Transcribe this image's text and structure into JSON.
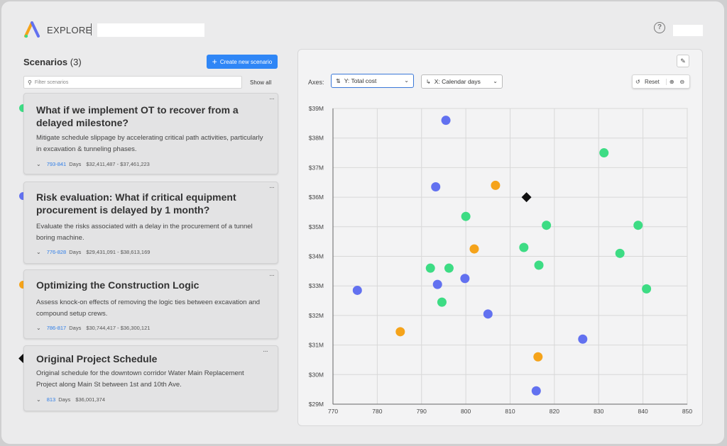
{
  "header": {
    "app_name": "EXPLORE",
    "help_icon": "help-circle-icon"
  },
  "scenarios": {
    "title": "Scenarios",
    "count": "(3)",
    "create_label": "Create new scenario",
    "filter_placeholder": "Filter scenarios",
    "show_all": "Show all",
    "items": [
      {
        "title": "What if we implement OT to recover from a delayed milestone?",
        "description": "Mitigate schedule slippage by accelerating critical path activities, particularly in excavation & tunneling phases.",
        "days_range": "793-841",
        "days_unit": "Days",
        "cost_range": "$32,411,487 - $37,461,223",
        "color": "#3ddc84"
      },
      {
        "title": "Risk evaluation: What if critical equipment procurement is delayed by 1 month?",
        "description": "Evaluate the risks associated with a delay in the procurement of a tunnel boring machine.",
        "days_range": "776-828",
        "days_unit": "Days",
        "cost_range": "$29,431,091 - $38,613,169",
        "color": "#6271f0"
      },
      {
        "title": "Optimizing the Construction Logic",
        "description": "Assess knock-on effects of removing the logic ties between excavation and compound setup crews.",
        "days_range": "786-817",
        "days_unit": "Days",
        "cost_range": "$30,744,417 - $36,300,121",
        "color": "#f5a31a"
      },
      {
        "title": "Original Project Schedule",
        "description": "Original schedule for the downtown corridor Water Main Replacement Project along Main St between 1st and 10th Ave.",
        "days_range": "813",
        "days_unit": "Days",
        "cost_range": "$36,001,374",
        "color": "#111111"
      }
    ]
  },
  "chart_controls": {
    "axes_label": "Axes:",
    "y_axis": "Y: Total cost",
    "x_axis": "X: Calendar days",
    "reset": "Reset"
  },
  "chart_data": {
    "type": "scatter",
    "xlabel": "",
    "ylabel": "",
    "xlim": [
      770,
      850
    ],
    "ylim": [
      29,
      39
    ],
    "x_ticks": [
      "770",
      "780",
      "790",
      "800",
      "810",
      "820",
      "830",
      "840",
      "850"
    ],
    "y_ticks": [
      "$29M",
      "$30M",
      "$31M",
      "$32M",
      "$33M",
      "$34M",
      "$35M",
      "$36M",
      "$37M",
      "$38M",
      "$39M"
    ],
    "grid": true,
    "series": [
      {
        "color": "#3ddc84",
        "marker": "circle",
        "points": [
          [
            831.2,
            37.5
          ],
          [
            800.0,
            35.35
          ],
          [
            818.2,
            35.05
          ],
          [
            838.9,
            35.05
          ],
          [
            813.1,
            34.3
          ],
          [
            834.8,
            34.1
          ],
          [
            792.0,
            33.6
          ],
          [
            796.2,
            33.6
          ],
          [
            816.5,
            33.7
          ],
          [
            840.8,
            32.9
          ],
          [
            794.6,
            32.45
          ]
        ]
      },
      {
        "color": "#6271f0",
        "marker": "circle",
        "points": [
          [
            795.5,
            38.6
          ],
          [
            793.2,
            36.35
          ],
          [
            775.5,
            32.85
          ],
          [
            793.6,
            33.05
          ],
          [
            799.8,
            33.25
          ],
          [
            805.0,
            32.05
          ],
          [
            826.4,
            31.2
          ],
          [
            815.9,
            29.45
          ]
        ]
      },
      {
        "color": "#f5a31a",
        "marker": "circle",
        "points": [
          [
            806.7,
            36.4
          ],
          [
            801.9,
            34.25
          ],
          [
            785.2,
            31.45
          ],
          [
            816.3,
            30.6
          ]
        ]
      },
      {
        "color": "#111111",
        "marker": "diamond",
        "points": [
          [
            813.7,
            36.0
          ]
        ]
      }
    ]
  }
}
